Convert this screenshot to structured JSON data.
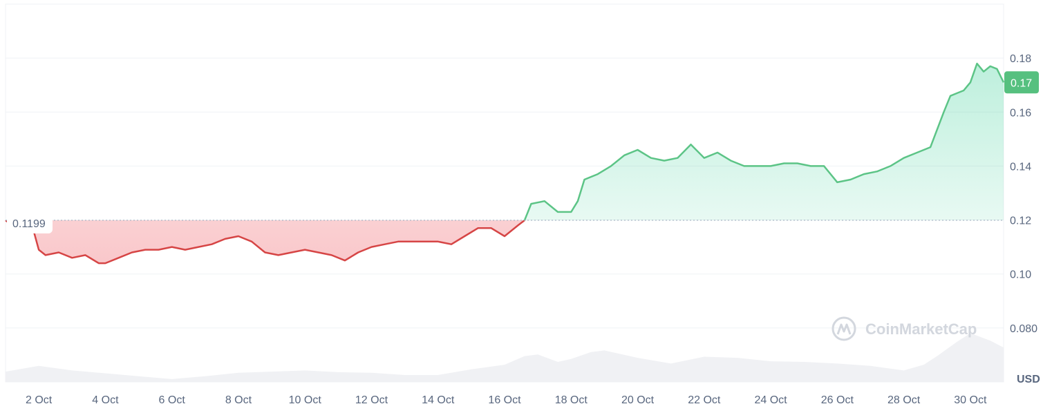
{
  "chart_data": {
    "type": "area",
    "xlabel": "",
    "ylabel": "",
    "unit": "USD",
    "ylim": [
      0.06,
      0.2
    ],
    "xlim": [
      1,
      31
    ],
    "yticks": [
      0.18,
      0.16,
      0.14,
      0.12,
      0.1,
      0.08
    ],
    "ytick_labels": [
      "0.18",
      "0.16",
      "0.14",
      "0.12",
      "0.10",
      "0.080"
    ],
    "xticks": [
      2,
      4,
      6,
      8,
      10,
      12,
      14,
      16,
      18,
      20,
      22,
      24,
      26,
      28,
      30
    ],
    "xtick_labels": [
      "2 Oct",
      "4 Oct",
      "6 Oct",
      "8 Oct",
      "10 Oct",
      "12 Oct",
      "14 Oct",
      "16 Oct",
      "18 Oct",
      "20 Oct",
      "22 Oct",
      "24 Oct",
      "26 Oct",
      "28 Oct",
      "30 Oct"
    ],
    "baseline": {
      "value": 0.1199,
      "label": "0.1199"
    },
    "current": {
      "value": 0.171,
      "label": "0.17"
    },
    "colors": {
      "up": "#16c784",
      "up_line": "#5cc486",
      "down_line": "#d64545",
      "grid": "#eff2f5",
      "text": "#58667e",
      "badge": "#56c07f"
    },
    "series": [
      {
        "x": [
          1,
          1.4,
          1.8,
          2.0,
          2.2,
          2.6,
          3.0,
          3.4,
          3.8,
          4.0,
          4.4,
          4.8,
          5.2,
          5.6,
          6.0,
          6.4,
          6.8,
          7.2,
          7.6,
          8.0,
          8.4,
          8.8,
          9.2,
          9.6,
          10.0,
          10.4,
          10.8,
          11.2,
          11.6,
          12.0,
          12.4,
          12.8,
          13.2,
          13.6,
          14.0,
          14.4,
          14.8,
          15.2,
          15.6,
          16.0,
          16.4,
          16.6,
          16.8,
          17.2,
          17.6,
          18.0,
          18.2,
          18.4,
          18.8,
          19.2,
          19.6,
          20.0,
          20.4,
          20.8,
          21.2,
          21.6,
          22.0,
          22.4,
          22.8,
          23.2,
          23.6,
          24.0,
          24.4,
          24.8,
          25.2,
          25.6,
          26.0,
          26.4,
          26.8,
          27.2,
          27.6,
          28.0,
          28.4,
          28.8,
          29.2,
          29.4,
          29.6,
          29.8,
          30.0,
          30.2,
          30.4,
          30.6,
          30.8,
          31.0
        ],
        "y": [
          0.1199,
          0.116,
          0.118,
          0.109,
          0.107,
          0.108,
          0.106,
          0.107,
          0.104,
          0.104,
          0.106,
          0.108,
          0.109,
          0.109,
          0.11,
          0.109,
          0.11,
          0.111,
          0.113,
          0.114,
          0.112,
          0.108,
          0.107,
          0.108,
          0.109,
          0.108,
          0.107,
          0.105,
          0.108,
          0.11,
          0.111,
          0.112,
          0.112,
          0.112,
          0.112,
          0.111,
          0.114,
          0.117,
          0.117,
          0.114,
          0.118,
          0.1199,
          0.126,
          0.127,
          0.123,
          0.123,
          0.127,
          0.135,
          0.137,
          0.14,
          0.144,
          0.146,
          0.143,
          0.142,
          0.143,
          0.148,
          0.143,
          0.145,
          0.142,
          0.14,
          0.14,
          0.14,
          0.141,
          0.141,
          0.14,
          0.14,
          0.134,
          0.135,
          0.137,
          0.138,
          0.14,
          0.143,
          0.145,
          0.147,
          0.16,
          0.166,
          0.167,
          0.168,
          0.171,
          0.178,
          0.175,
          0.177,
          0.176,
          0.171
        ]
      }
    ],
    "volume": {
      "x": [
        1,
        2,
        3,
        4,
        5,
        6,
        7,
        8,
        9,
        10,
        11,
        12,
        13,
        14,
        15,
        16,
        16.6,
        17,
        17.6,
        18,
        18.6,
        19,
        20,
        21,
        22,
        23,
        24,
        25,
        26,
        27,
        28,
        28.6,
        29,
        29.6,
        30,
        30.6,
        31
      ],
      "v": [
        0.18,
        0.28,
        0.2,
        0.15,
        0.1,
        0.05,
        0.1,
        0.16,
        0.18,
        0.2,
        0.17,
        0.16,
        0.12,
        0.12,
        0.22,
        0.3,
        0.45,
        0.48,
        0.35,
        0.4,
        0.52,
        0.55,
        0.42,
        0.32,
        0.44,
        0.42,
        0.36,
        0.35,
        0.32,
        0.28,
        0.2,
        0.3,
        0.45,
        0.7,
        0.85,
        0.72,
        0.6
      ]
    }
  },
  "watermark": {
    "text": "CoinMarketCap"
  }
}
